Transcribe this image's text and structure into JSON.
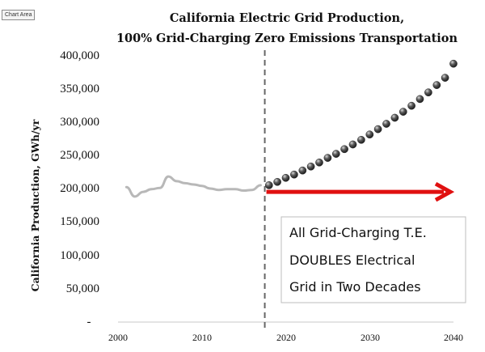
{
  "chart_area_label": "Chart Area",
  "chart_data": {
    "type": "line",
    "title": "California Electric Grid Production,",
    "subtitle": "100% Grid-Charging Zero Emissions Transportation",
    "xlabel": "",
    "ylabel": "California Production, GWh/yr",
    "xlim": [
      2000,
      2040
    ],
    "ylim": [
      0,
      400000
    ],
    "x_ticks": [
      "2000",
      "2010",
      "2020",
      "2030",
      "2040"
    ],
    "y_ticks": [
      "400,000",
      "350,000",
      "300,000",
      "250,000",
      "200,000",
      "150,000",
      "100,000",
      "50,000",
      "-"
    ],
    "y_tick_values": [
      400000,
      350000,
      300000,
      250000,
      200000,
      150000,
      100000,
      50000,
      0
    ],
    "grid": false,
    "series": [
      {
        "style": "line",
        "color": "#b8b8b8",
        "x": [
          2001,
          2002,
          2003,
          2004,
          2005,
          2006,
          2007,
          2008,
          2009,
          2010,
          2011,
          2012,
          2013,
          2014,
          2015,
          2016,
          2017
        ],
        "values": [
          202000,
          188000,
          195000,
          199000,
          201000,
          218000,
          211000,
          208000,
          206000,
          204000,
          200000,
          198000,
          199000,
          199000,
          197000,
          198000,
          205000
        ]
      },
      {
        "style": "markers",
        "color": "#404040",
        "x": [
          2018,
          2019,
          2020,
          2021,
          2022,
          2023,
          2024,
          2025,
          2026,
          2027,
          2028,
          2029,
          2030,
          2031,
          2032,
          2033,
          2034,
          2035,
          2036,
          2037,
          2038,
          2039,
          2040
        ],
        "values": [
          205000,
          210000,
          216000,
          221000,
          227000,
          233000,
          239000,
          246000,
          252000,
          259000,
          266000,
          273000,
          281000,
          289000,
          297000,
          306000,
          315000,
          324000,
          334000,
          344000,
          355000,
          366000,
          387000
        ]
      }
    ],
    "annotations": {
      "vertical_line_x": 2017.5,
      "arrow": {
        "x_start": 2017.5,
        "x_end": 2040,
        "y": 195000,
        "color": "#e01010"
      },
      "callout_lines": [
        "All Grid-Charging T.E.",
        "DOUBLES Electrical",
        "Grid in Two Decades"
      ]
    }
  }
}
